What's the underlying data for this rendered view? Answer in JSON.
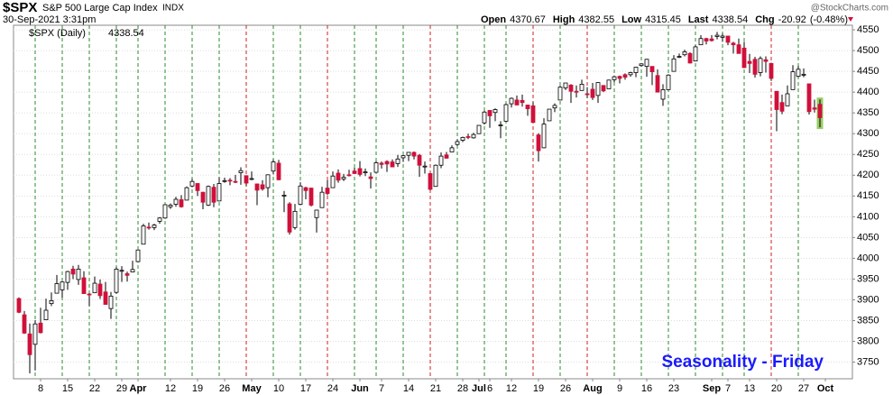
{
  "header": {
    "symbol": "$SPX",
    "name": "S&P 500 Large Cap Index",
    "exchange": "INDX",
    "datetime": "30-Sep-2021 3:31pm",
    "watermark": "@StockCharts.com",
    "quote": [
      {
        "label": "Open",
        "value": 4370.67
      },
      {
        "label": "High",
        "value": 4382.55
      },
      {
        "label": "Low",
        "value": 4315.45
      },
      {
        "label": "Last",
        "value": 4338.54
      },
      {
        "label": "Chg",
        "value": -20.92,
        "percent": "(-0.48%)"
      }
    ]
  },
  "chart_data": {
    "type": "candlestick",
    "legend": {
      "name": "$SPX (Daily)",
      "value": 4338.54
    },
    "annotation": "Seasonality - Friday",
    "up_color": "#ffffff",
    "down_color": "#d0103a",
    "grid": true,
    "ylim": [
      3710,
      4561
    ],
    "yticks": [
      3750,
      3800,
      3850,
      3900,
      3950,
      4000,
      4050,
      4100,
      4150,
      4200,
      4250,
      4300,
      4350,
      4400,
      4450,
      4500,
      4550
    ],
    "categories": [
      null,
      null,
      null,
      null,
      "8",
      null,
      null,
      null,
      null,
      "15",
      null,
      null,
      null,
      null,
      "22",
      null,
      null,
      null,
      null,
      "29",
      null,
      null,
      "Apr",
      null,
      null,
      null,
      null,
      null,
      "12",
      null,
      null,
      null,
      null,
      "19",
      null,
      null,
      null,
      null,
      "26",
      null,
      null,
      null,
      null,
      "May",
      null,
      null,
      null,
      null,
      "10",
      null,
      null,
      null,
      null,
      "17",
      null,
      null,
      null,
      null,
      "24",
      null,
      null,
      null,
      null,
      "Jun",
      null,
      null,
      null,
      "7",
      null,
      null,
      null,
      null,
      "14",
      null,
      null,
      null,
      null,
      "21",
      null,
      null,
      null,
      null,
      "28",
      null,
      null,
      "Jul",
      null,
      "6",
      null,
      null,
      null,
      "12",
      null,
      null,
      null,
      null,
      "19",
      null,
      null,
      null,
      null,
      "26",
      null,
      null,
      null,
      null,
      "Aug",
      null,
      null,
      null,
      null,
      "9",
      null,
      null,
      null,
      null,
      "16",
      null,
      null,
      null,
      null,
      "23",
      null,
      null,
      null,
      null,
      null,
      null,
      "Sep",
      null,
      null,
      "7",
      null,
      null,
      null,
      "13",
      null,
      null,
      null,
      null,
      "20",
      null,
      null,
      null,
      null,
      "27",
      null,
      null,
      null,
      "Oct"
    ],
    "ohlc": [
      [
        3903,
        3906,
        3868,
        3870
      ],
      [
        3864,
        3873,
        3818,
        3820
      ],
      [
        3818,
        3843,
        3723,
        3768
      ],
      [
        3793,
        3851,
        3730,
        3842
      ],
      [
        3844,
        3881,
        3819,
        3821
      ],
      [
        3852,
        3903,
        3852,
        3875
      ],
      [
        3891,
        3918,
        3885,
        3898
      ],
      [
        3916,
        3960,
        3916,
        3939
      ],
      [
        3924,
        3944,
        3905,
        3943
      ],
      [
        3942,
        3970,
        3924,
        3968
      ],
      [
        3974,
        3982,
        3950,
        3962
      ],
      [
        3949,
        3984,
        3936,
        3974
      ],
      [
        3953,
        3969,
        3914,
        3915
      ],
      [
        3914,
        3916,
        3885,
        3913
      ],
      [
        3917,
        3956,
        3917,
        3940
      ],
      [
        3938,
        3949,
        3902,
        3910
      ],
      [
        3919,
        3943,
        3889,
        3889
      ],
      [
        3879,
        3919,
        3854,
        3909
      ],
      [
        3918,
        3979,
        3915,
        3974
      ],
      [
        3969,
        3981,
        3943,
        3971
      ],
      [
        3963,
        3968,
        3944,
        3959
      ],
      [
        3967,
        3994,
        3966,
        3973
      ],
      [
        3992,
        4020,
        3990,
        4020
      ],
      [
        4034,
        4083,
        4034,
        4078
      ],
      [
        4075,
        4086,
        4069,
        4074
      ],
      [
        4074,
        4083,
        4068,
        4080
      ],
      [
        4089,
        4099,
        4083,
        4097
      ],
      [
        4097,
        4129,
        4095,
        4129
      ],
      [
        4124,
        4132,
        4119,
        4128
      ],
      [
        4130,
        4148,
        4124,
        4142
      ],
      [
        4141,
        4152,
        4122,
        4124
      ],
      [
        4140,
        4173,
        4140,
        4170
      ],
      [
        4174,
        4191,
        4171,
        4185
      ],
      [
        4180,
        4181,
        4150,
        4163
      ],
      [
        4159,
        4160,
        4118,
        4135
      ],
      [
        4128,
        4175,
        4126,
        4173
      ],
      [
        4171,
        4179,
        4123,
        4135
      ],
      [
        4138,
        4195,
        4138,
        4180
      ],
      [
        4185,
        4194,
        4182,
        4187
      ],
      [
        4188,
        4193,
        4176,
        4186
      ],
      [
        4185,
        4201,
        4181,
        4183
      ],
      [
        4206,
        4219,
        4177,
        4211
      ],
      [
        4199,
        4199,
        4174,
        4181
      ],
      [
        4192,
        4209,
        4188,
        4192
      ],
      [
        4179,
        4180,
        4128,
        4164
      ],
      [
        4177,
        4188,
        4163,
        4167
      ],
      [
        4170,
        4202,
        4147,
        4201
      ],
      [
        4210,
        4238,
        4202,
        4232
      ],
      [
        4229,
        4237,
        4188,
        4189
      ],
      [
        4150,
        4162,
        4111,
        4152
      ],
      [
        4131,
        4135,
        4057,
        4063
      ],
      [
        4074,
        4131,
        4069,
        4113
      ],
      [
        4130,
        4183,
        4130,
        4174
      ],
      [
        4170,
        4172,
        4142,
        4163
      ],
      [
        4169,
        4170,
        4125,
        4128
      ],
      [
        4098,
        4117,
        4062,
        4116
      ],
      [
        4122,
        4172,
        4122,
        4159
      ],
      [
        4169,
        4188,
        4152,
        4156
      ],
      [
        4170,
        4209,
        4170,
        4198
      ],
      [
        4205,
        4214,
        4182,
        4188
      ],
      [
        4191,
        4203,
        4186,
        4195
      ],
      [
        4201,
        4213,
        4197,
        4200
      ],
      [
        4210,
        4218,
        4203,
        4204
      ],
      [
        4216,
        4234,
        4197,
        4202
      ],
      [
        4207,
        4216,
        4198,
        4208
      ],
      [
        4196,
        4207,
        4168,
        4192
      ],
      [
        4207,
        4234,
        4206,
        4230
      ],
      [
        4229,
        4233,
        4216,
        4226
      ],
      [
        4233,
        4236,
        4208,
        4227
      ],
      [
        4232,
        4238,
        4219,
        4220
      ],
      [
        4228,
        4249,
        4220,
        4239
      ],
      [
        4242,
        4248,
        4232,
        4247
      ],
      [
        4248,
        4255,
        4234,
        4255
      ],
      [
        4255,
        4257,
        4238,
        4246
      ],
      [
        4248,
        4251,
        4196,
        4224
      ],
      [
        4220,
        4233,
        4204,
        4222
      ],
      [
        4204,
        4204,
        4164,
        4166
      ],
      [
        4173,
        4226,
        4173,
        4224
      ],
      [
        4224,
        4255,
        4217,
        4246
      ],
      [
        4249,
        4256,
        4240,
        4241
      ],
      [
        4256,
        4272,
        4256,
        4266
      ],
      [
        4274,
        4286,
        4271,
        4281
      ],
      [
        4284,
        4293,
        4280,
        4291
      ],
      [
        4293,
        4300,
        4287,
        4291
      ],
      [
        4290,
        4302,
        4288,
        4298
      ],
      [
        4300,
        4320,
        4300,
        4320
      ],
      [
        4326,
        4355,
        4322,
        4352
      ],
      [
        4356,
        4357,
        4314,
        4343
      ],
      [
        4351,
        4361,
        4330,
        4358
      ],
      [
        4321,
        4330,
        4289,
        4321
      ],
      [
        4330,
        4372,
        4329,
        4370
      ],
      [
        4372,
        4387,
        4363,
        4385
      ],
      [
        4381,
        4392,
        4369,
        4369
      ],
      [
        4380,
        4394,
        4365,
        4375
      ],
      [
        4369,
        4370,
        4343,
        4360
      ],
      [
        4367,
        4376,
        4327,
        4327
      ],
      [
        4297,
        4301,
        4233,
        4259
      ],
      [
        4266,
        4337,
        4265,
        4323
      ],
      [
        4331,
        4359,
        4331,
        4359
      ],
      [
        4362,
        4373,
        4352,
        4368
      ],
      [
        4381,
        4415,
        4381,
        4412
      ],
      [
        4410,
        4422,
        4405,
        4422
      ],
      [
        4417,
        4419,
        4374,
        4402
      ],
      [
        4402,
        4416,
        4387,
        4400
      ],
      [
        4404,
        4430,
        4404,
        4419
      ],
      [
        4396,
        4412,
        4386,
        4395
      ],
      [
        4407,
        4422,
        4381,
        4387
      ],
      [
        4392,
        4424,
        4374,
        4423
      ],
      [
        4416,
        4417,
        4400,
        4403
      ],
      [
        4408,
        4430,
        4408,
        4429
      ],
      [
        4430,
        4440,
        4424,
        4437
      ],
      [
        4438,
        4440,
        4421,
        4433
      ],
      [
        4442,
        4445,
        4430,
        4436
      ],
      [
        4442,
        4449,
        4437,
        4447
      ],
      [
        4447,
        4461,
        4436,
        4460
      ],
      [
        4464,
        4468,
        4461,
        4468
      ],
      [
        4462,
        4480,
        4437,
        4479
      ],
      [
        4462,
        4462,
        4417,
        4449
      ],
      [
        4440,
        4455,
        4400,
        4400
      ],
      [
        4383,
        4419,
        4367,
        4406
      ],
      [
        4406,
        4443,
        4406,
        4441
      ],
      [
        4450,
        4489,
        4450,
        4480
      ],
      [
        4484,
        4493,
        4482,
        4486
      ],
      [
        4490,
        4502,
        4486,
        4497
      ],
      [
        4493,
        4496,
        4469,
        4470
      ],
      [
        4475,
        4513,
        4474,
        4509
      ],
      [
        4514,
        4537,
        4514,
        4529
      ],
      [
        4529,
        4531,
        4515,
        4523
      ],
      [
        4528,
        4537,
        4522,
        4524
      ],
      [
        4534,
        4545,
        4527,
        4537
      ],
      [
        4532,
        4541,
        4521,
        4535
      ],
      [
        4535,
        4535,
        4513,
        4520
      ],
      [
        4518,
        4521,
        4493,
        4514
      ],
      [
        4514,
        4529,
        4493,
        4493
      ],
      [
        4506,
        4521,
        4458,
        4459
      ],
      [
        4474,
        4492,
        4446,
        4469
      ],
      [
        4479,
        4485,
        4435,
        4443
      ],
      [
        4447,
        4486,
        4438,
        4481
      ],
      [
        4478,
        4486,
        4447,
        4474
      ],
      [
        4469,
        4471,
        4427,
        4433
      ],
      [
        4402,
        4402,
        4306,
        4358
      ],
      [
        4375,
        4394,
        4347,
        4354
      ],
      [
        4367,
        4416,
        4367,
        4396
      ],
      [
        4406,
        4465,
        4406,
        4449
      ],
      [
        4438,
        4463,
        4436,
        4455
      ],
      [
        4443,
        4457,
        4436,
        4443
      ],
      [
        4420,
        4420,
        4346,
        4353
      ],
      [
        4362,
        4382,
        4351,
        4359
      ],
      [
        4370.67,
        4382.55,
        4315.45,
        4338.54
      ],
      null
    ]
  }
}
